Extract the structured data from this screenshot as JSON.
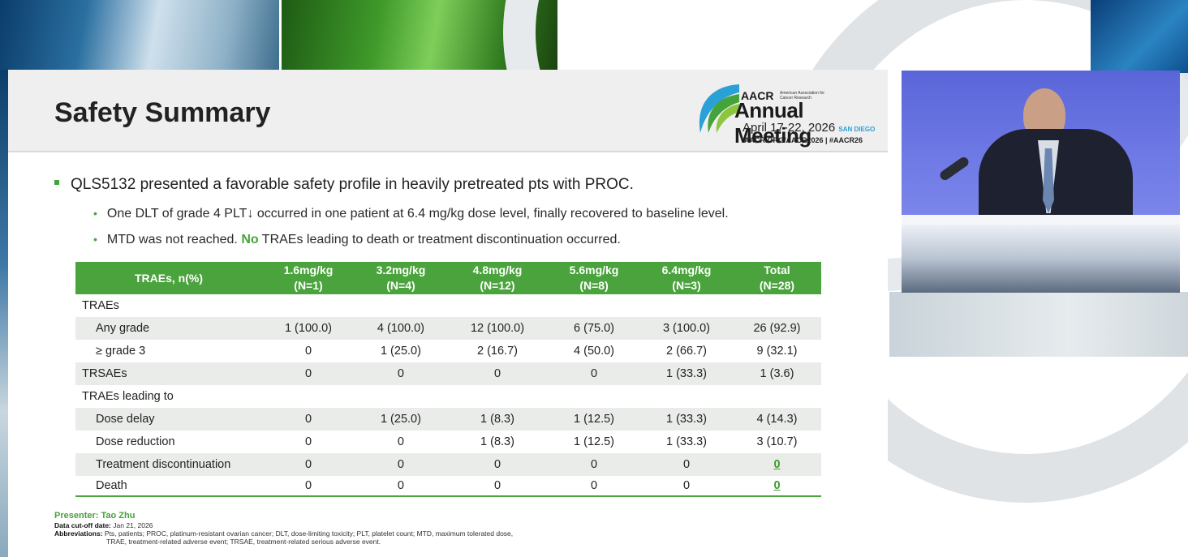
{
  "slide": {
    "title": "Safety Summary",
    "logo": {
      "org": "AACR",
      "org_sub": "American Association for Cancer Research",
      "meeting": "Annual Meeting",
      "dates": "April 17-22, 2026",
      "city": "SAN DIEGO",
      "url": "AACR.ORG/AACR2026  |  #AACR26"
    },
    "bullet_main": "QLS5132 presented a favorable safety profile in heavily pretreated pts with PROC.",
    "sub_bullet_1": "One DLT of grade 4 PLT↓ occurred in one patient at 6.4 mg/kg dose level, finally recovered to baseline level.",
    "sub_bullet_2_pre": "MTD was not reached. ",
    "sub_bullet_2_emph": "No",
    "sub_bullet_2_post": " TRAEs leading to death or treatment discontinuation occurred.",
    "table": {
      "header_row_label": "TRAEs, n(%)",
      "columns": [
        {
          "dose": "1.6mg/kg",
          "n": "(N=1)"
        },
        {
          "dose": "3.2mg/kg",
          "n": "(N=4)"
        },
        {
          "dose": "4.8mg/kg",
          "n": "(N=12)"
        },
        {
          "dose": "5.6mg/kg",
          "n": "(N=8)"
        },
        {
          "dose": "6.4mg/kg",
          "n": "(N=3)"
        },
        {
          "dose": "Total",
          "n": "(N=28)"
        }
      ],
      "rows": [
        {
          "label": "TRAEs",
          "cells": [
            "",
            "",
            "",
            "",
            "",
            ""
          ]
        },
        {
          "label": "Any grade",
          "cells": [
            "1 (100.0)",
            "4 (100.0)",
            "12 (100.0)",
            "6 (75.0)",
            "3 (100.0)",
            "26 (92.9)"
          ]
        },
        {
          "label": "≥ grade 3",
          "cells": [
            "0",
            "1 (25.0)",
            "2 (16.7)",
            "4 (50.0)",
            "2 (66.7)",
            "9 (32.1)"
          ]
        },
        {
          "label": "TRSAEs",
          "cells": [
            "0",
            "0",
            "0",
            "0",
            "1 (33.3)",
            "1 (3.6)"
          ]
        },
        {
          "label": "TRAEs leading to",
          "cells": [
            "",
            "",
            "",
            "",
            "",
            ""
          ]
        },
        {
          "label": "Dose delay",
          "cells": [
            "0",
            "1 (25.0)",
            "1 (8.3)",
            "1 (12.5)",
            "1 (33.3)",
            "4 (14.3)"
          ]
        },
        {
          "label": "Dose reduction",
          "cells": [
            "0",
            "0",
            "1 (8.3)",
            "1 (12.5)",
            "1 (33.3)",
            "3 (10.7)"
          ]
        },
        {
          "label": "Treatment discontinuation",
          "cells": [
            "0",
            "0",
            "0",
            "0",
            "0",
            "0"
          ]
        },
        {
          "label": "Death",
          "cells": [
            "0",
            "0",
            "0",
            "0",
            "0",
            "0"
          ]
        }
      ]
    },
    "footer": {
      "presenter": "Presenter: Tao Zhu",
      "cutoff_label": "Data cut-off date:",
      "cutoff_value": " Jan 21, 2026",
      "abbr_label": "Abbreviations:",
      "abbr_line1": " Pts, patients; PROC, platinum-resistant ovarian cancer; DLT, dose-limiting toxicity; PLT, platelet count; MTD, maximum tolerated dose,",
      "abbr_line2": "TRAE, treatment-related adverse event; TRSAE, treatment-related serious adverse event."
    }
  },
  "colors": {
    "accent_green": "#4aa33c",
    "header_gray": "#efefef",
    "row_shade": "#e9ece9"
  }
}
